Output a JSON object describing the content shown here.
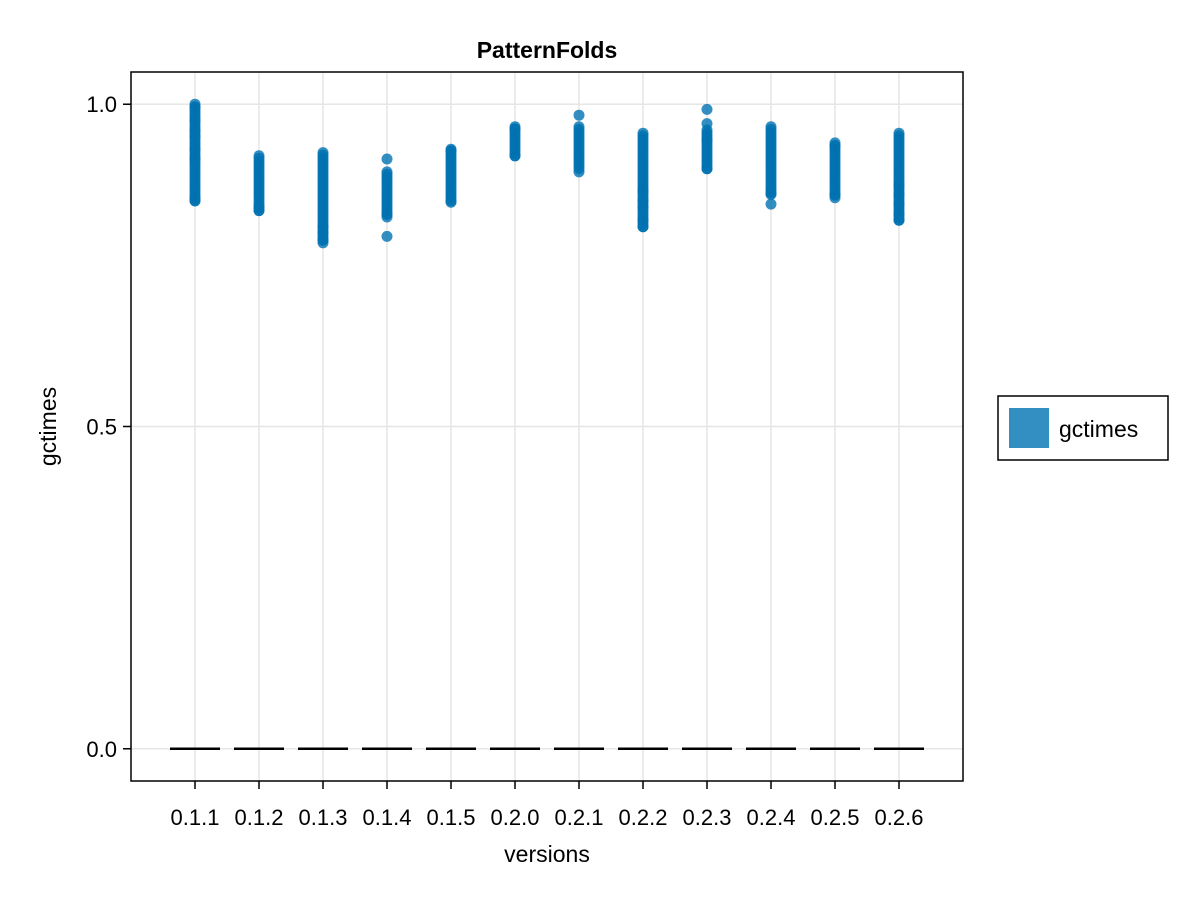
{
  "chart_data": {
    "type": "scatter",
    "title": "PatternFolds",
    "xlabel": "versions",
    "ylabel": "gctimes",
    "categories": [
      "0.1.1",
      "0.1.2",
      "0.1.3",
      "0.1.4",
      "0.1.5",
      "0.2.0",
      "0.2.1",
      "0.2.2",
      "0.2.3",
      "0.2.4",
      "0.2.5",
      "0.2.6"
    ],
    "ylim": [
      -0.05,
      1.05
    ],
    "yticks": [
      0.0,
      0.5,
      1.0
    ],
    "ytick_labels": [
      "0.0",
      "0.5",
      "1.0"
    ],
    "grid": true,
    "legend_position": "right",
    "marker_color": "#0072b2",
    "series": [
      {
        "name": "gctimes",
        "points": [
          [
            [
              0.85,
              1.0
            ],
            [
              0.995,
              0.975,
              0.96,
              0.95,
              0.93,
              0.915,
              0.85,
              0.855
            ]
          ],
          [
            [
              0.835,
              0.92
            ],
            [
              0.84,
              0.835
            ]
          ],
          [
            [
              0.785,
              0.925
            ],
            [
              0.79,
              0.8,
              0.81
            ]
          ],
          [
            [
              0.825,
              0.895
            ],
            [
              0.915,
              0.795,
              0.83
            ]
          ],
          [
            [
              0.85,
              0.93
            ],
            [
              0.848,
              0.928
            ]
          ],
          [
            [
              0.92,
              0.965
            ],
            [
              0.92,
              0.962
            ]
          ],
          [
            [
              0.9,
              0.965
            ],
            [
              0.983,
              0.895
            ]
          ],
          [
            [
              0.81,
              0.955
            ],
            [
              0.865,
              0.82,
              0.84,
              0.85,
              0.81
            ]
          ],
          [
            [
              0.9,
              0.96
            ],
            [
              0.992,
              0.97,
              0.945,
              0.9
            ]
          ],
          [
            [
              0.86,
              0.965
            ],
            [
              0.862,
              0.845
            ]
          ],
          [
            [
              0.855,
              0.94
            ],
            [
              0.86,
              0.935
            ]
          ],
          [
            [
              0.82,
              0.955
            ],
            [
              0.82,
              0.83,
              0.845,
              0.86,
              0.875
            ]
          ]
        ]
      }
    ],
    "hline_segments": {
      "y": 0.0,
      "color": "#000000",
      "style": "dashed"
    }
  }
}
